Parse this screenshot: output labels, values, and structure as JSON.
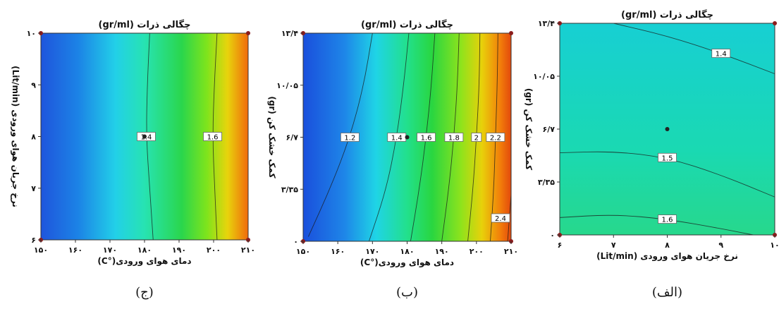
{
  "chart_data": [
    {
      "id": "jim",
      "type": "contour",
      "caption": "(ج)",
      "title": "چگالی ذرات (gr/ml)",
      "xlabel": "دمای هوای ورودی(°C)",
      "ylabel": "نرخ جریان هوای ورودی (Lit/min)",
      "x_ticks": [
        "۱۵۰",
        "۱۶۰",
        "۱۷۰",
        "۱۸۰",
        "۱۹۰",
        "۲۰۰",
        "۲۱۰"
      ],
      "y_ticks": [
        "۶",
        "۷",
        "۸",
        "۹",
        "۱۰"
      ],
      "xlim": [
        150,
        210
      ],
      "ylim": [
        6,
        10
      ],
      "contours": [
        {
          "label": "1.4",
          "points": [
            [
              182.5,
              6
            ],
            [
              181.5,
              7
            ],
            [
              180.5,
              8
            ],
            [
              180.8,
              9
            ],
            [
              181.5,
              10
            ]
          ]
        },
        {
          "label": "1.6",
          "points": [
            [
              201,
              6
            ],
            [
              200.3,
              7
            ],
            [
              199.7,
              8
            ],
            [
              200.2,
              9
            ],
            [
              201,
              10
            ]
          ]
        }
      ],
      "center_point": [
        180,
        8
      ]
    },
    {
      "id": "be",
      "type": "contour",
      "caption": "(ب)",
      "title": "چگالی ذرات (gr/ml)",
      "xlabel": "دمای هوای ورودی(°C)",
      "ylabel": "کمک خشک کن (gr)",
      "x_ticks": [
        "۱۵۰",
        "۱۶۰",
        "۱۷۰",
        "۱۸۰",
        "۱۹۰",
        "۲۰۰",
        "۲۱۰"
      ],
      "y_ticks": [
        "۰",
        "۳/۳۵",
        "۶/۷",
        "۱۰/۰۵",
        "۱۳/۴"
      ],
      "xlim": [
        150,
        210
      ],
      "ylim": [
        0,
        13.4
      ],
      "contours": [
        {
          "label": "1.2",
          "points": [
            [
              151.5,
              0.3
            ],
            [
              158,
              3.5
            ],
            [
              163.5,
              6.7
            ],
            [
              167.5,
              10.05
            ],
            [
              170,
              13.4
            ]
          ]
        },
        {
          "label": "1.4",
          "points": [
            [
              169,
              0
            ],
            [
              174,
              3.35
            ],
            [
              177,
              6.7
            ],
            [
              179,
              10.05
            ],
            [
              180.5,
              13.4
            ]
          ]
        },
        {
          "label": "1.6",
          "points": [
            [
              181,
              0
            ],
            [
              183.5,
              3.35
            ],
            [
              185.5,
              6.7
            ],
            [
              187,
              10.05
            ],
            [
              188,
              13.4
            ]
          ]
        },
        {
          "label": "1.8",
          "points": [
            [
              190,
              0
            ],
            [
              192,
              3.35
            ],
            [
              193.5,
              6.7
            ],
            [
              194.5,
              10.05
            ],
            [
              195,
              13.4
            ]
          ]
        },
        {
          "label": "2",
          "points": [
            [
              197.5,
              0
            ],
            [
              199,
              3.35
            ],
            [
              200,
              6.7
            ],
            [
              200.8,
              10.05
            ],
            [
              201,
              13.4
            ]
          ]
        },
        {
          "label": "2.2",
          "points": [
            [
              204,
              0
            ],
            [
              205,
              3.35
            ],
            [
              205.5,
              6.7
            ],
            [
              206,
              10.05
            ],
            [
              206.2,
              13.4
            ]
          ]
        },
        {
          "label": "2.4",
          "points": [
            [
              209,
              0
            ],
            [
              209.5,
              1.5
            ],
            [
              210,
              3
            ]
          ]
        }
      ],
      "center_point": [
        180,
        6.7
      ]
    },
    {
      "id": "alef",
      "type": "contour",
      "caption": "(الف)",
      "title": "چگالی ذرات (gr/ml)",
      "xlabel": "نرخ جریان هوای ورودی (Lit/min)",
      "ylabel": "کمک خشک کن (gr)",
      "x_ticks": [
        "۶",
        "۷",
        "۸",
        "۹",
        "۱۰"
      ],
      "y_ticks": [
        "۰",
        "۳/۳۵",
        "۶/۷",
        "۱۰/۰۵",
        "۱۳/۴"
      ],
      "xlim": [
        6,
        10
      ],
      "ylim": [
        0,
        13.4
      ],
      "contours": [
        {
          "label": "1.4",
          "points": [
            [
              7,
              13.4
            ],
            [
              8,
              12.6
            ],
            [
              9,
              11.5
            ],
            [
              10,
              10.2
            ]
          ]
        },
        {
          "label": "1.5",
          "points": [
            [
              6,
              5.2
            ],
            [
              7,
              5.3
            ],
            [
              8,
              4.9
            ],
            [
              9,
              3.8
            ],
            [
              10,
              2.4
            ]
          ]
        },
        {
          "label": "1.6",
          "points": [
            [
              6,
              1.1
            ],
            [
              7,
              1.3
            ],
            [
              8,
              1.0
            ],
            [
              9,
              0.4
            ],
            [
              9.6,
              0
            ]
          ]
        }
      ],
      "center_point": [
        8,
        6.7
      ]
    }
  ]
}
